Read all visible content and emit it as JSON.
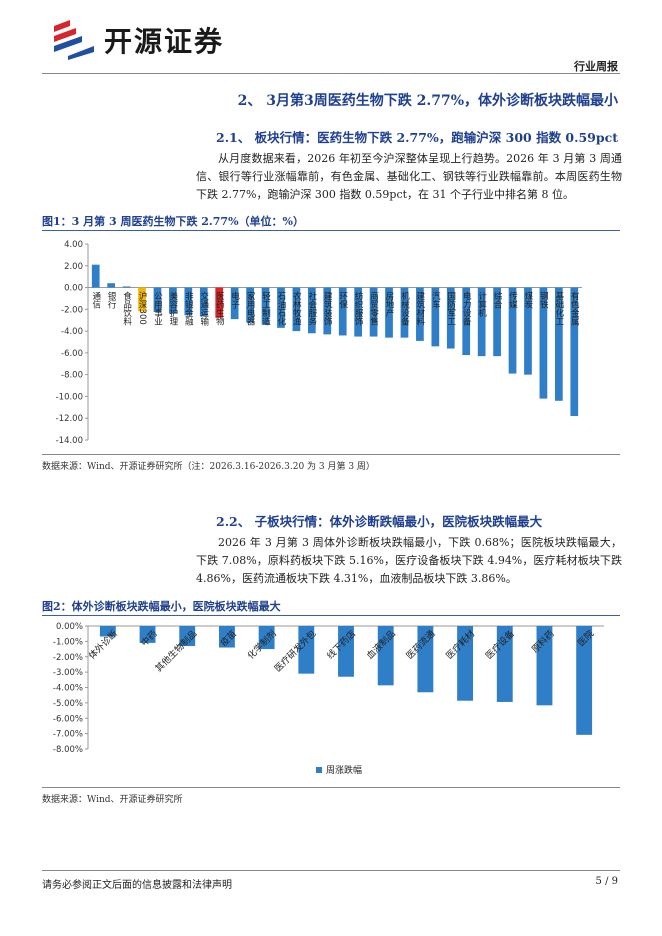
{
  "header": {
    "brand": "开源证券",
    "tag": "行业周报"
  },
  "section_title": "2、 3月第3周医药生物下跌 2.77%，体外诊断板块跌幅最小",
  "sub1": {
    "title": "2.1、 板块行情：医药生物下跌 2.77%，跑输沪深 300 指数 0.59pct",
    "paragraph": "从月度数据来看，2026 年初至今沪深整体呈现上行趋势。2026 年 3 月第 3 周通信、银行等行业涨幅靠前，有色金属、基础化工、钢铁等行业跌幅靠前。本周医药生物下跌 2.77%，跑输沪深 300 指数 0.59pct，在 31 个子行业中排名第 8 位。"
  },
  "sub2": {
    "title": "2.2、 子板块行情：体外诊断跌幅最小，医院板块跌幅最大",
    "paragraph": "2026 年 3 月第 3 周体外诊断板块跌幅最小，下跌 0.68%；医院板块跌幅最大，下跌 7.08%，原料药板块下跌 5.16%，医疗设备板块下跌 4.94%，医疗耗材板块下跌 4.86%，医药流通板块下跌 4.31%，血液制品板块下跌 3.86%。"
  },
  "footer": {
    "disclaimer": "请务必参阅正文后面的信息披露和法律声明",
    "page": "5 / 9"
  },
  "chart_data": [
    {
      "type": "bar",
      "title": "图1：3 月第 3 周医药生物下跌 2.77%（单位：%）",
      "note": "数据来源：Wind、开源证券研究所（注：2026.3.16-2026.3.20 为 3 月第 3 周）",
      "categories": [
        "通信",
        "银行",
        "食品饮料",
        "沪深300",
        "公用事业",
        "美容护理",
        "非银金融",
        "交通运输",
        "医药生物",
        "电子",
        "家用电器",
        "轻工制造",
        "石油石化",
        "农林牧渔",
        "社会服务",
        "建筑装饰",
        "环保",
        "纺织服饰",
        "商贸零售",
        "房地产",
        "机械设备",
        "建筑材料",
        "汽车",
        "国防军工",
        "电力设备",
        "计算机",
        "综合",
        "传媒",
        "煤炭",
        "钢铁",
        "基础化工",
        "有色金属"
      ],
      "values": [
        2.1,
        0.4,
        0.1,
        -2.18,
        -2.25,
        -2.4,
        -2.55,
        -2.65,
        -2.77,
        -2.9,
        -3.2,
        -3.4,
        -3.7,
        -4.0,
        -4.2,
        -4.3,
        -4.4,
        -4.5,
        -4.5,
        -4.6,
        -4.6,
        -4.9,
        -5.4,
        -5.6,
        -6.2,
        -6.3,
        -6.3,
        -7.9,
        -8.0,
        -10.2,
        -10.4,
        -11.8
      ],
      "color": "#2f7fc8",
      "highlights": [
        {
          "index": 3,
          "color": "#f2b600"
        },
        {
          "index": 8,
          "color": "#e02424"
        }
      ],
      "ylim": [
        -14,
        4
      ],
      "yticks": [
        {
          "value": 4,
          "label": "4.00"
        },
        {
          "value": 2,
          "label": "2.00"
        },
        {
          "value": 0,
          "label": "0.00"
        },
        {
          "value": -2,
          "label": "-2.00"
        },
        {
          "value": -4,
          "label": "-4.00"
        },
        {
          "value": -6,
          "label": "-6.00"
        },
        {
          "value": -8,
          "label": "-8.00"
        },
        {
          "value": -10,
          "label": "-10.00"
        },
        {
          "value": -12,
          "label": "-12.00"
        },
        {
          "value": -14,
          "label": "-14.00"
        }
      ]
    },
    {
      "type": "bar",
      "title": "图2：体外诊断板块跌幅最小，医院板块跌幅最大",
      "note": "数据来源：Wind、开源证券研究所",
      "categories": [
        "体外诊断",
        "中药",
        "其他生物制品",
        "疫苗",
        "化学制剂",
        "医疗研发外包",
        "线下药店",
        "血液制品",
        "医药流通",
        "医疗耗材",
        "医疗设备",
        "原料药",
        "医院"
      ],
      "series": [
        {
          "name": "周涨跌幅",
          "color": "#2f7fc8",
          "values": [
            -0.68,
            -1.1,
            -1.3,
            -1.4,
            -1.5,
            -3.1,
            -3.3,
            -3.86,
            -4.31,
            -4.86,
            -4.94,
            -5.16,
            -7.08
          ]
        }
      ],
      "legend": "bottom",
      "ylim": [
        -8,
        0
      ],
      "yticks": [
        {
          "value": 0,
          "label": "0.00%"
        },
        {
          "value": -1,
          "label": "-1.00%"
        },
        {
          "value": -2,
          "label": "-2.00%"
        },
        {
          "value": -3,
          "label": "-3.00%"
        },
        {
          "value": -4,
          "label": "-4.00%"
        },
        {
          "value": -5,
          "label": "-5.00%"
        },
        {
          "value": -6,
          "label": "-6.00%"
        },
        {
          "value": -7,
          "label": "-7.00%"
        },
        {
          "value": -8,
          "label": "-8.00%"
        }
      ]
    }
  ]
}
